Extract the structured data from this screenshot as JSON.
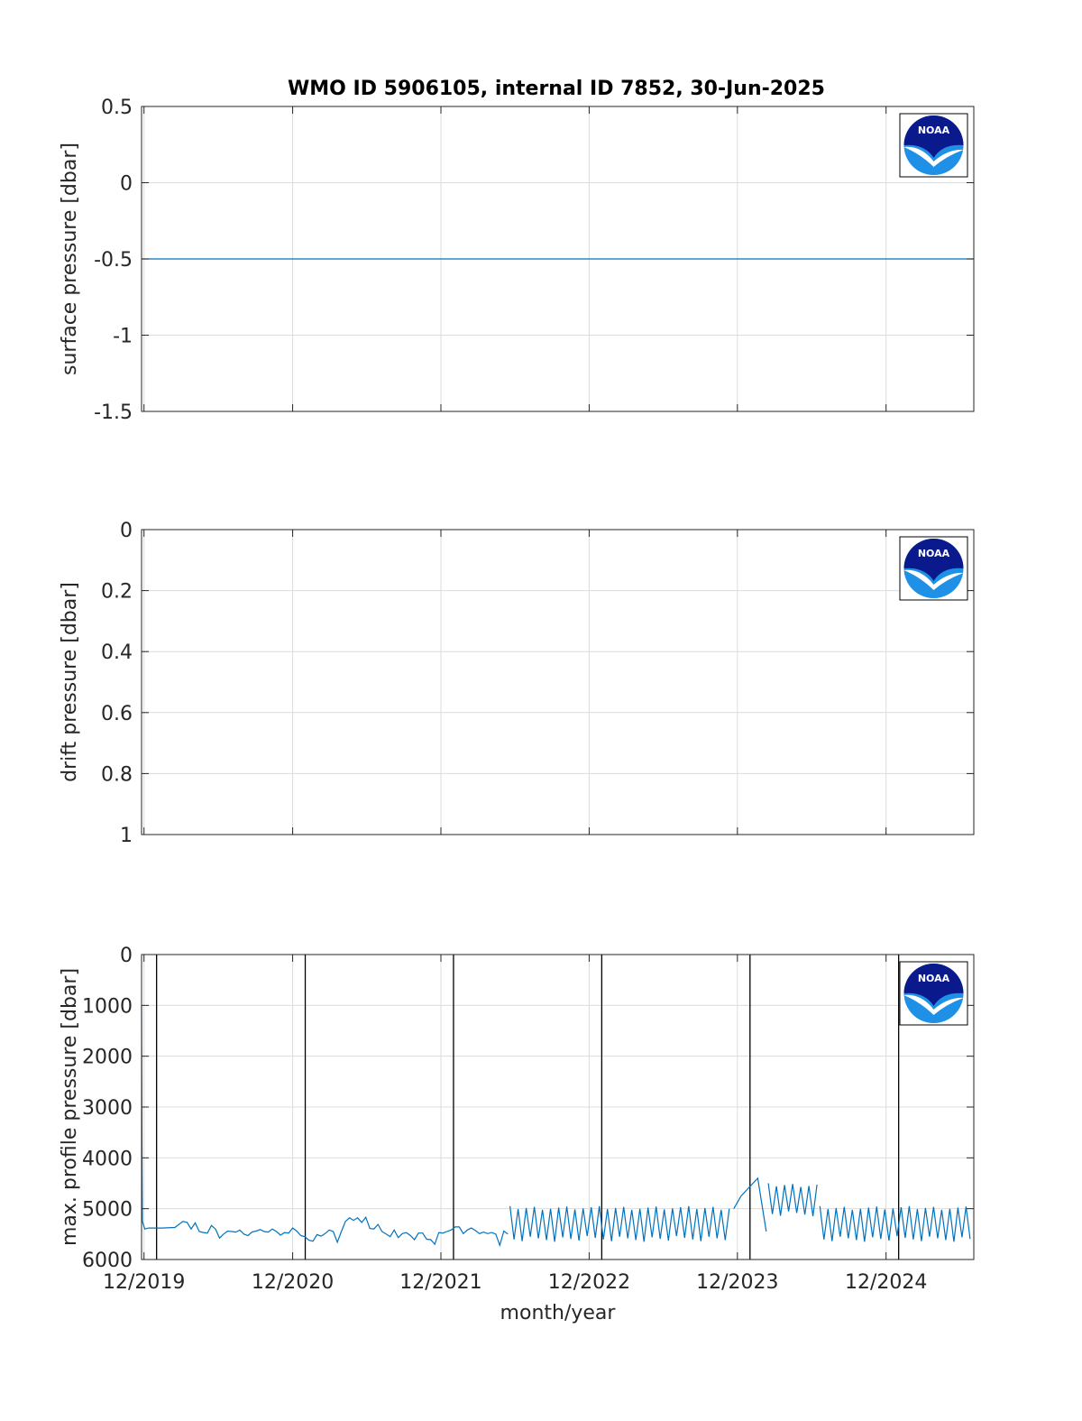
{
  "figure_title": "WMO ID 5906105, internal ID 7852, 30-Jun-2025",
  "logo_text": "NOAA",
  "colors": {
    "series": "#0072bd",
    "grid": "#dcdcdc",
    "axis": "#262626",
    "marker_line": "#000000",
    "logo_navy": "#0a1a8c",
    "logo_blue": "#1e90e6"
  },
  "chart_data": [
    {
      "type": "line",
      "title": "WMO ID 5906105, internal ID 7852, 30-Jun-2025",
      "xlabel": "",
      "ylabel": "surface pressure [dbar]",
      "xlim": [
        "2019-11-25",
        "2025-07-05"
      ],
      "ylim": [
        -1.5,
        0.5
      ],
      "y_reversed": false,
      "yticks": [
        0.5,
        0,
        -0.5,
        -1,
        -1.5
      ],
      "ytick_labels": [
        "0.5",
        "0",
        "-0.5",
        "-1",
        "-1.5"
      ],
      "x_ticks": [
        "2019-12-01",
        "2020-12-01",
        "2021-12-01",
        "2022-12-01",
        "2023-12-01",
        "2024-12-01"
      ],
      "grid": true,
      "series": [
        {
          "x": [
            "2019-11-25",
            "2025-07-05"
          ],
          "y": [
            -0.5,
            -0.5
          ]
        }
      ]
    },
    {
      "type": "line",
      "xlabel": "",
      "ylabel": "drift pressure [dbar]",
      "xlim": [
        "2019-11-25",
        "2025-07-05"
      ],
      "ylim": [
        0,
        1
      ],
      "y_reversed": true,
      "yticks": [
        0,
        0.2,
        0.4,
        0.6,
        0.8,
        1
      ],
      "ytick_labels": [
        "0",
        "0.2",
        "0.4",
        "0.6",
        "0.8",
        "1"
      ],
      "x_ticks": [
        "2019-12-01",
        "2020-12-01",
        "2021-12-01",
        "2022-12-01",
        "2023-12-01",
        "2024-12-01"
      ],
      "grid": true,
      "series": []
    },
    {
      "type": "line",
      "xlabel": "month/year",
      "ylabel": "max. profile pressure [dbar]",
      "xlim": [
        "2019-11-25",
        "2025-07-05"
      ],
      "ylim": [
        0,
        6000
      ],
      "y_reversed": true,
      "yticks": [
        0,
        1000,
        2000,
        3000,
        4000,
        5000,
        6000
      ],
      "ytick_labels": [
        "0",
        "1000",
        "2000",
        "3000",
        "4000",
        "5000",
        "6000"
      ],
      "x_ticks": [
        "2019-12-01",
        "2020-12-01",
        "2021-12-01",
        "2022-12-01",
        "2023-12-01",
        "2024-12-01"
      ],
      "xtick_labels": [
        "12/2019",
        "12/2020",
        "12/2021",
        "12/2022",
        "12/2023",
        "12/2024"
      ],
      "grid": true,
      "year_markers": [
        "2020-01-01",
        "2021-01-01",
        "2022-01-01",
        "2023-01-01",
        "2024-01-01",
        "2025-01-01"
      ],
      "series": [
        {
          "x": [
            "2019-11-25",
            "2019-11-26",
            "2019-11-27",
            "2019-12-03",
            "2019-12-13",
            "2020-01-15",
            "2020-02-15",
            "2020-03-06",
            "2020-03-16",
            "2020-03-26",
            "2020-04-05",
            "2020-04-15",
            "2020-04-25",
            "2020-05-05",
            "2020-05-15",
            "2020-05-25",
            "2020-06-04",
            "2020-06-14",
            "2020-06-24",
            "2020-07-04",
            "2020-07-14",
            "2020-07-24",
            "2020-08-03",
            "2020-08-13",
            "2020-08-23",
            "2020-09-02",
            "2020-09-12",
            "2020-09-22",
            "2020-10-02",
            "2020-10-12",
            "2020-10-22",
            "2020-11-01",
            "2020-11-11",
            "2020-11-21",
            "2020-12-01",
            "2020-12-11",
            "2020-12-21",
            "2020-12-31",
            "2021-01-10",
            "2021-01-20",
            "2021-01-30",
            "2021-02-09",
            "2021-02-19",
            "2021-03-01",
            "2021-03-11",
            "2021-03-21",
            "2021-03-31",
            "2021-04-10",
            "2021-04-20",
            "2021-04-30",
            "2021-05-10",
            "2021-05-20",
            "2021-05-30",
            "2021-06-09",
            "2021-06-19",
            "2021-06-29",
            "2021-07-09",
            "2021-07-19",
            "2021-07-29",
            "2021-08-08",
            "2021-08-18",
            "2021-08-28",
            "2021-09-07",
            "2021-09-17",
            "2021-09-27",
            "2021-10-07",
            "2021-10-17",
            "2021-10-27",
            "2021-11-06",
            "2021-11-16",
            "2021-11-26",
            "2021-12-06",
            "2021-12-16",
            "2021-12-26",
            "2022-01-05",
            "2022-01-15",
            "2022-01-25",
            "2022-02-04",
            "2022-02-14",
            "2022-02-24",
            "2022-03-06",
            "2022-03-16",
            "2022-03-26",
            "2022-04-05",
            "2022-04-15",
            "2022-04-25",
            "2022-05-05",
            "2022-05-15"
          ],
          "y": [
            1000,
            4000,
            5250,
            5400,
            5380,
            5380,
            5370,
            5250,
            5270,
            5400,
            5280,
            5450,
            5470,
            5480,
            5330,
            5400,
            5580,
            5500,
            5440,
            5450,
            5460,
            5420,
            5500,
            5530,
            5460,
            5440,
            5410,
            5450,
            5460,
            5400,
            5450,
            5520,
            5470,
            5480,
            5380,
            5440,
            5530,
            5550,
            5620,
            5640,
            5510,
            5540,
            5490,
            5420,
            5450,
            5660,
            5450,
            5250,
            5180,
            5230,
            5180,
            5270,
            5170,
            5390,
            5400,
            5310,
            5450,
            5500,
            5550,
            5420,
            5570,
            5490,
            5470,
            5530,
            5610,
            5480,
            5480,
            5600,
            5610,
            5700,
            5470,
            5480,
            5450,
            5420,
            5360,
            5360,
            5490,
            5420,
            5380,
            5430,
            5490,
            5460,
            5490,
            5470,
            5500,
            5720,
            5440,
            5500
          ]
        }
      ],
      "dense_segments": [
        {
          "start": "2022-05-20",
          "end": "2023-11-20",
          "low": 4950,
          "high": 5650,
          "step_days": 10
        },
        {
          "start": "2024-06-21",
          "end": "2025-07-05",
          "low": 4950,
          "high": 5650,
          "step_days": 10
        }
      ],
      "annotated_points": [
        {
          "x": "2022-05-22",
          "y": 4900
        },
        {
          "x": "2023-11-22",
          "y": 5000
        },
        {
          "x": "2023-12-10",
          "y": 4750
        },
        {
          "x": "2024-01-20",
          "y": 4400
        },
        {
          "x": "2024-02-10",
          "y": 5450
        },
        {
          "x": "2024-12-22",
          "y": 5700
        }
      ],
      "raised_segment": {
        "start": "2024-02-15",
        "end": "2024-06-20",
        "low": 4500,
        "high": 5150,
        "step_days": 10
      }
    }
  ]
}
